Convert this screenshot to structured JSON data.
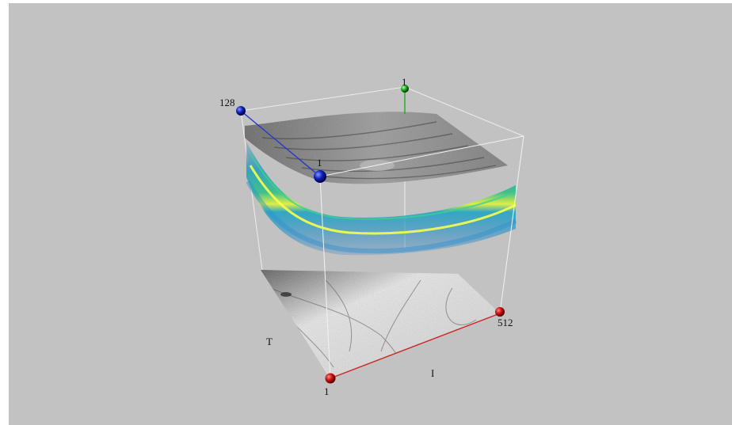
{
  "viewer": {
    "axis_labels": {
      "top_back_vertex": "1",
      "top_left_vertex": "128",
      "top_front_vertex": "1",
      "front_bottom_vertex": "1",
      "right_bottom_vertex": "512",
      "side_T": "T",
      "side_I": "I"
    },
    "colors": {
      "background": "#c2c2c2",
      "axis_x": "#cc2222",
      "axis_y": "#2233cc",
      "axis_z": "#22aa22",
      "box_edges": "#f2f2f2"
    },
    "icons": [
      "red-sphere-icon",
      "blue-sphere-icon",
      "green-sphere-icon"
    ]
  }
}
